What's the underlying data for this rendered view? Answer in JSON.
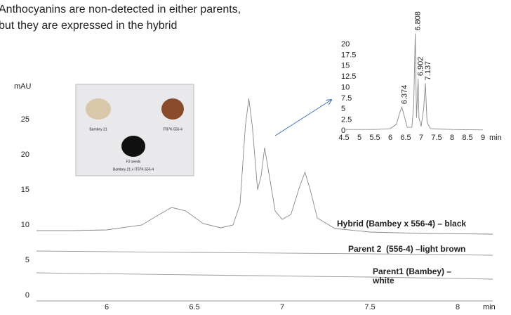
{
  "annotation": "Anthocyanins are non-detected in either parents, but they are expressed in the hybrid",
  "photo": {
    "labels": [
      "Bambey 21",
      "IT97K-556-4",
      "F2 seeds",
      "Bambey 21 x IT97K-556-4"
    ]
  },
  "chart_data": [
    {
      "type": "line",
      "y_label": "mAU",
      "x_label": "min",
      "xlim": [
        5.6,
        8.2
      ],
      "ylim": [
        -0.8,
        29.5
      ],
      "xticks": [
        6,
        6.5,
        7,
        7.5,
        8
      ],
      "yticks": [
        0,
        5,
        10,
        15,
        20,
        25
      ],
      "series": [
        {
          "name": "Hybrid (Bambey x 556-4) – black",
          "color": "#888888",
          "x": [
            5.6,
            5.8,
            6.0,
            6.2,
            6.3,
            6.37,
            6.45,
            6.55,
            6.65,
            6.72,
            6.76,
            6.79,
            6.81,
            6.83,
            6.86,
            6.88,
            6.9,
            6.92,
            6.96,
            7.0,
            7.05,
            7.1,
            7.13,
            7.16,
            7.2,
            7.3,
            7.5,
            7.8,
            8.2
          ],
          "values": [
            9.2,
            9.2,
            9.3,
            10.0,
            11.5,
            12.5,
            12.0,
            10.2,
            9.6,
            10.0,
            13,
            24,
            28.0,
            24,
            15,
            17,
            21.0,
            18,
            12,
            10.8,
            11.5,
            15.5,
            17.5,
            15,
            11,
            9.5,
            9.0,
            8.8,
            8.7
          ]
        },
        {
          "name": "Parent 2  (556-4) –light brown",
          "color": "#999999",
          "x": [
            5.6,
            6.5,
            7.5,
            8.2
          ],
          "values": [
            6.3,
            6.1,
            5.9,
            5.7
          ]
        },
        {
          "name": "Parent1 (Bambey) – white",
          "color": "#999999",
          "x": [
            5.6,
            6.5,
            7.5,
            8.2
          ],
          "values": [
            3.2,
            2.9,
            2.6,
            2.3
          ]
        }
      ]
    },
    {
      "type": "line",
      "x_label": "min",
      "xlim": [
        4.5,
        9
      ],
      "ylim": [
        0,
        22.5
      ],
      "xticks": [
        4.5,
        5,
        5.5,
        6,
        6.5,
        7,
        7.5,
        8,
        8.5,
        9
      ],
      "yticks": [
        0,
        2.5,
        5,
        7.5,
        10,
        12.5,
        15,
        17.5,
        20
      ],
      "series": [
        {
          "color": "#888888",
          "x": [
            4.5,
            5.5,
            6.0,
            6.2,
            6.3,
            6.374,
            6.45,
            6.55,
            6.7,
            6.76,
            6.808,
            6.85,
            6.88,
            6.902,
            6.93,
            7.0,
            7.08,
            7.137,
            7.19,
            7.3,
            8.0,
            9.0
          ],
          "values": [
            0.3,
            0.3,
            0.5,
            1.5,
            4,
            5.5,
            3.5,
            0.8,
            0.8,
            6,
            22.5,
            3,
            8,
            12,
            3,
            1,
            5,
            11,
            2,
            0.5,
            0.3,
            0.2
          ]
        }
      ],
      "peaks": {
        "x": [
          6.374,
          6.808,
          6.902,
          7.137
        ],
        "y": [
          5.5,
          22.5,
          12,
          11
        ]
      }
    }
  ]
}
